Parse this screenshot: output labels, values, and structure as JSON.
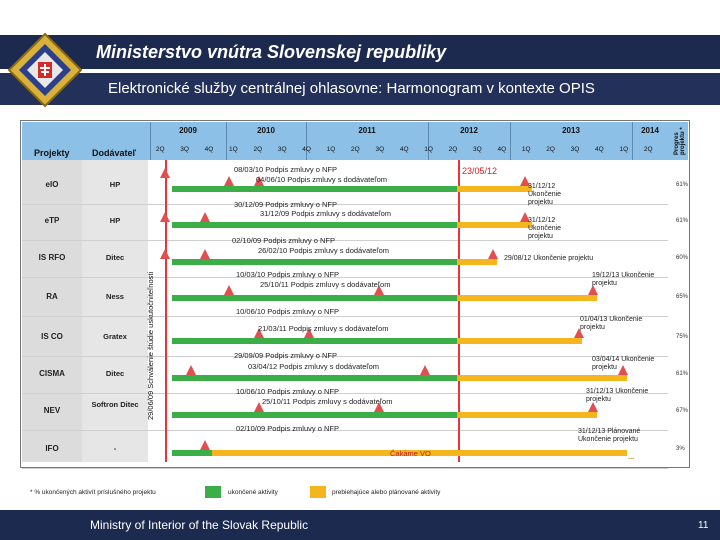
{
  "header": {
    "title": "Ministerstvo vnútra Slovenskej republiky",
    "subtitle": "Elektronické služby centrálnej ohlasovne: Harmonogram v kontexte OPIS"
  },
  "table": {
    "col_projects": "Projekty",
    "col_supplier": "Dodávateľ",
    "col_progress": "Progres projektu *",
    "years": [
      "2009",
      "2010",
      "2011",
      "2012",
      "2013",
      "2014"
    ],
    "quarters": [
      "2Q",
      "3Q",
      "4Q",
      "1Q",
      "2Q",
      "3Q",
      "4Q",
      "1Q",
      "2Q",
      "3Q",
      "4Q",
      "1Q",
      "2Q",
      "3Q",
      "4Q",
      "1Q",
      "2Q",
      "3Q",
      "4Q",
      "1Q",
      "2Q"
    ],
    "vertical_label": "29/06/09 Schválenie štúdie uskutočniteľnosti",
    "top_date": "23/05/12",
    "rows": [
      {
        "project": "eIO",
        "supplier": "HP",
        "progress": "61%"
      },
      {
        "project": "eTP",
        "supplier": "HP",
        "progress": "61%"
      },
      {
        "project": "IS RFO",
        "supplier": "Ditec",
        "progress": "60%"
      },
      {
        "project": "RA",
        "supplier": "Ness",
        "progress": "65%"
      },
      {
        "project": "IS CO",
        "supplier": "Gratex",
        "progress": "75%"
      },
      {
        "project": "CISMA",
        "supplier": "Ditec",
        "progress": "61%"
      },
      {
        "project": "NEV",
        "supplier": "Softron Ditec",
        "progress": "67%"
      },
      {
        "project": "IFO",
        "supplier": "-",
        "progress": "3%"
      }
    ],
    "annotations": [
      "08/03/10 Podpis zmluvy o NFP",
      "04/06/10 Podpis zmluvy s dodávateľom",
      "30/12/09 Podpis zmluvy o NFP",
      "31/12/09 Podpis zmluvy s dodávateľom",
      "02/10/09 Podpis zmluvy o NFP",
      "26/02/10 Podpis zmluvy s dodávateľom",
      "10/03/10 Podpis zmluvy o NFP",
      "25/10/11 Podpis zmluvy s dodávateľom",
      "10/06/10 Podpis zmluvy o NFP",
      "21/03/11 Podpis zmluvy s dodávateľom",
      "29/09/09 Podpis zmluvy o NFP",
      "03/04/12 Podpis zmluvy s dodávateľom",
      "10/06/10 Podpis zmluvy o NFP",
      "25/10/11 Podpis zmluvy s dodávateľom",
      "02/10/09 Podpis zmluvy o NFP"
    ],
    "right_notes": [
      "31/12/12 Ukončenie projektu",
      "31/12/12 Ukončenie projektu",
      "29/08/12 Ukončenie projektu",
      "19/12/13 Ukončenie projektu",
      "01/04/13 Ukončenie projektu",
      "03/04/14 Ukončenie projektu",
      "31/12/13 Ukončenie projektu",
      "31/12/13 Plánované Ukončenie projektu"
    ],
    "ifo_status": "Čakáme VO",
    "ellipsis": "..."
  },
  "legend": {
    "note": "* % ukončených aktivít príslušného projektu",
    "done": "ukončené aktivity",
    "ongoing": "prebiehajúce alebo plánované aktivity"
  },
  "footer": {
    "text": "Ministry of Interior of the Slovak Republic",
    "page": "11"
  },
  "colors": {
    "navy": "#1c2a4f",
    "header_blue": "#8dc0e6",
    "done_green": "#3cae48",
    "ongoing_yellow": "#f4b61c",
    "milestone_red": "#e05050"
  }
}
